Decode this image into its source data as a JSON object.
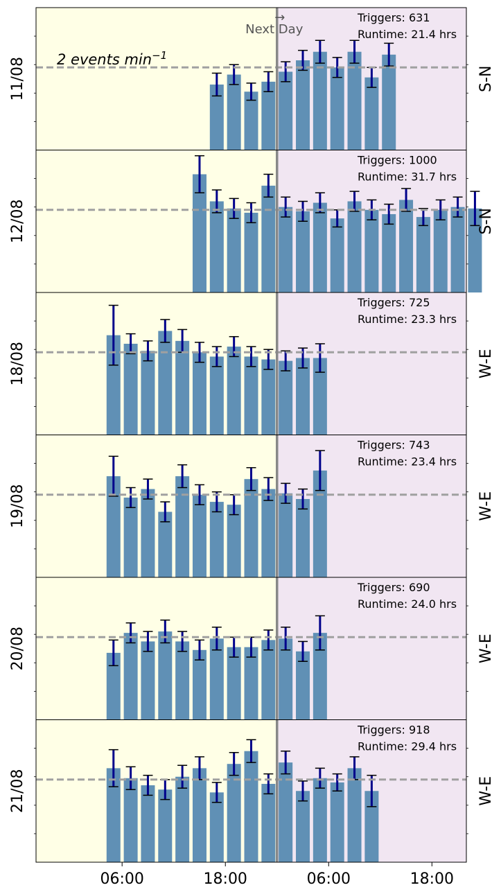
{
  "chart_data": {
    "type": "bar",
    "annotations": {
      "reference_line_text": "2 events min",
      "reference_line_exponent": "−1",
      "next_day_arrow": "→",
      "next_day_text": "Next Day"
    },
    "x_axis": {
      "range_hours": [
        -4,
        46
      ],
      "ticks": [
        {
          "hours": 6,
          "label": "06:00"
        },
        {
          "hours": 18,
          "label": "18:00"
        },
        {
          "hours": 30,
          "label": "06:00"
        },
        {
          "hours": 42,
          "label": "18:00"
        }
      ]
    },
    "y_axis": {
      "range": [
        0,
        1.0
      ],
      "reference_value": 0.58
    },
    "midnight_hours": 24,
    "colors": {
      "day_background": "#ffffe6",
      "next_day_background": "#f1e6f2",
      "bar": "#6090b5",
      "error_bar": "#00008b",
      "reference_line": "#a0a0a0",
      "midnight_line": "#888888"
    },
    "panels": [
      {
        "date": "11/08",
        "orientation": "S-N",
        "triggers_label": "Triggers: 631",
        "runtime_label": "Runtime: 21.4 hrs",
        "show_reference_text": true,
        "show_next_day": true,
        "bars": [
          {
            "hours": 17,
            "value": 0.46,
            "err": 0.08
          },
          {
            "hours": 19,
            "value": 0.53,
            "err": 0.07
          },
          {
            "hours": 21,
            "value": 0.41,
            "err": 0.06
          },
          {
            "hours": 23,
            "value": 0.48,
            "err": 0.07
          },
          {
            "hours": 25,
            "value": 0.55,
            "err": 0.07
          },
          {
            "hours": 27,
            "value": 0.63,
            "err": 0.07
          },
          {
            "hours": 29,
            "value": 0.69,
            "err": 0.08
          },
          {
            "hours": 31,
            "value": 0.58,
            "err": 0.07
          },
          {
            "hours": 33,
            "value": 0.69,
            "err": 0.08
          },
          {
            "hours": 35,
            "value": 0.51,
            "err": 0.07
          },
          {
            "hours": 37,
            "value": 0.67,
            "err": 0.08
          }
        ]
      },
      {
        "date": "12/08",
        "orientation": "S-N",
        "triggers_label": "Triggers: 1000",
        "runtime_label": "Runtime: 31.7 hrs",
        "show_reference_text": false,
        "show_next_day": false,
        "bars": [
          {
            "hours": 15,
            "value": 0.83,
            "err": 0.13
          },
          {
            "hours": 17,
            "value": 0.64,
            "err": 0.08
          },
          {
            "hours": 19,
            "value": 0.59,
            "err": 0.07
          },
          {
            "hours": 21,
            "value": 0.56,
            "err": 0.07
          },
          {
            "hours": 23,
            "value": 0.75,
            "err": 0.08
          },
          {
            "hours": 25,
            "value": 0.6,
            "err": 0.07
          },
          {
            "hours": 27,
            "value": 0.57,
            "err": 0.07
          },
          {
            "hours": 29,
            "value": 0.63,
            "err": 0.07
          },
          {
            "hours": 31,
            "value": 0.52,
            "err": 0.06
          },
          {
            "hours": 33,
            "value": 0.64,
            "err": 0.07
          },
          {
            "hours": 35,
            "value": 0.58,
            "err": 0.07
          },
          {
            "hours": 37,
            "value": 0.55,
            "err": 0.07
          },
          {
            "hours": 39,
            "value": 0.65,
            "err": 0.08
          },
          {
            "hours": 41,
            "value": 0.53,
            "err": 0.06
          },
          {
            "hours": 43,
            "value": 0.58,
            "err": 0.07
          },
          {
            "hours": 45,
            "value": 0.6,
            "err": 0.07
          },
          {
            "hours": 47,
            "value": 0.59,
            "err": 0.12
          }
        ]
      },
      {
        "date": "18/08",
        "orientation": "W-E",
        "triggers_label": "Triggers: 725",
        "runtime_label": "Runtime: 23.3 hrs",
        "show_reference_text": false,
        "show_next_day": false,
        "bars": [
          {
            "hours": 5,
            "value": 0.7,
            "err": 0.21
          },
          {
            "hours": 7,
            "value": 0.64,
            "err": 0.07
          },
          {
            "hours": 9,
            "value": 0.59,
            "err": 0.07
          },
          {
            "hours": 11,
            "value": 0.73,
            "err": 0.08
          },
          {
            "hours": 13,
            "value": 0.66,
            "err": 0.08
          },
          {
            "hours": 15,
            "value": 0.58,
            "err": 0.07
          },
          {
            "hours": 17,
            "value": 0.55,
            "err": 0.07
          },
          {
            "hours": 19,
            "value": 0.62,
            "err": 0.07
          },
          {
            "hours": 21,
            "value": 0.55,
            "err": 0.07
          },
          {
            "hours": 23,
            "value": 0.53,
            "err": 0.07
          },
          {
            "hours": 25,
            "value": 0.52,
            "err": 0.07
          },
          {
            "hours": 27,
            "value": 0.54,
            "err": 0.07
          },
          {
            "hours": 29,
            "value": 0.54,
            "err": 0.1
          }
        ]
      },
      {
        "date": "19/08",
        "orientation": "W-E",
        "triggers_label": "Triggers: 743",
        "runtime_label": "Runtime: 23.4 hrs",
        "show_reference_text": false,
        "show_next_day": false,
        "bars": [
          {
            "hours": 5,
            "value": 0.71,
            "err": 0.14
          },
          {
            "hours": 7,
            "value": 0.56,
            "err": 0.07
          },
          {
            "hours": 9,
            "value": 0.62,
            "err": 0.07
          },
          {
            "hours": 11,
            "value": 0.46,
            "err": 0.07
          },
          {
            "hours": 13,
            "value": 0.71,
            "err": 0.08
          },
          {
            "hours": 15,
            "value": 0.58,
            "err": 0.07
          },
          {
            "hours": 17,
            "value": 0.53,
            "err": 0.07
          },
          {
            "hours": 19,
            "value": 0.51,
            "err": 0.07
          },
          {
            "hours": 21,
            "value": 0.69,
            "err": 0.08
          },
          {
            "hours": 23,
            "value": 0.62,
            "err": 0.08
          },
          {
            "hours": 25,
            "value": 0.59,
            "err": 0.07
          },
          {
            "hours": 27,
            "value": 0.55,
            "err": 0.07
          },
          {
            "hours": 29,
            "value": 0.75,
            "err": 0.14
          }
        ]
      },
      {
        "date": "20/08",
        "orientation": "W-E",
        "triggers_label": "Triggers: 690",
        "runtime_label": "Runtime: 24.0 hrs",
        "show_reference_text": false,
        "show_next_day": false,
        "bars": [
          {
            "hours": 5,
            "value": 0.47,
            "err": 0.09
          },
          {
            "hours": 7,
            "value": 0.61,
            "err": 0.07
          },
          {
            "hours": 9,
            "value": 0.55,
            "err": 0.07
          },
          {
            "hours": 11,
            "value": 0.62,
            "err": 0.08
          },
          {
            "hours": 13,
            "value": 0.55,
            "err": 0.07
          },
          {
            "hours": 15,
            "value": 0.49,
            "err": 0.07
          },
          {
            "hours": 17,
            "value": 0.57,
            "err": 0.08
          },
          {
            "hours": 19,
            "value": 0.51,
            "err": 0.07
          },
          {
            "hours": 21,
            "value": 0.51,
            "err": 0.07
          },
          {
            "hours": 23,
            "value": 0.56,
            "err": 0.07
          },
          {
            "hours": 25,
            "value": 0.57,
            "err": 0.08
          },
          {
            "hours": 27,
            "value": 0.48,
            "err": 0.07
          },
          {
            "hours": 29,
            "value": 0.61,
            "err": 0.12
          }
        ]
      },
      {
        "date": "21/08",
        "orientation": "W-E",
        "triggers_label": "Triggers: 918",
        "runtime_label": "Runtime: 29.4 hrs",
        "show_reference_text": false,
        "show_next_day": false,
        "bars": [
          {
            "hours": 5,
            "value": 0.66,
            "err": 0.13
          },
          {
            "hours": 7,
            "value": 0.59,
            "err": 0.08
          },
          {
            "hours": 9,
            "value": 0.54,
            "err": 0.07
          },
          {
            "hours": 11,
            "value": 0.51,
            "err": 0.07
          },
          {
            "hours": 13,
            "value": 0.6,
            "err": 0.08
          },
          {
            "hours": 15,
            "value": 0.66,
            "err": 0.08
          },
          {
            "hours": 17,
            "value": 0.49,
            "err": 0.07
          },
          {
            "hours": 19,
            "value": 0.69,
            "err": 0.08
          },
          {
            "hours": 21,
            "value": 0.78,
            "err": 0.08
          },
          {
            "hours": 23,
            "value": 0.55,
            "err": 0.07
          },
          {
            "hours": 25,
            "value": 0.7,
            "err": 0.08
          },
          {
            "hours": 27,
            "value": 0.5,
            "err": 0.07
          },
          {
            "hours": 29,
            "value": 0.59,
            "err": 0.07
          },
          {
            "hours": 31,
            "value": 0.56,
            "err": 0.06
          },
          {
            "hours": 33,
            "value": 0.66,
            "err": 0.08
          },
          {
            "hours": 35,
            "value": 0.5,
            "err": 0.11
          }
        ]
      }
    ]
  }
}
